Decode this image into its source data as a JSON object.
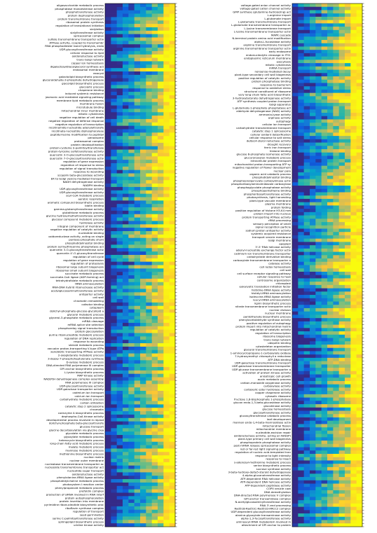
{
  "chart_data": {
    "type": "heatmap",
    "colormap": {
      "name": "viridis",
      "stops": [
        "#352a87",
        "#0f5cdd",
        "#1481d6",
        "#06a4ca",
        "#2eb7a4",
        "#87bf77",
        "#d1bb59",
        "#fec832",
        "#f9fb0e"
      ],
      "range": [
        0,
        1
      ]
    },
    "grid": false,
    "panels": [
      {
        "name": "left",
        "columns": 12,
        "rows": [
          "oligosaccharide metabolic process",
          "phosphatase monoesterase activity",
          "phosphotransferase activity",
          "protein dephosphorylation",
          "protein transmembrane transport",
          "ribosomal protein synthesis",
          "regulation of translational initiation",
          "sialylation",
          "sialyltransferase activity",
          "spliceosomal complex",
          "sulfate transmembrane transporter activ",
          "ATPase activity, coupled to transmembr",
          "RNA phosphodiester bond hydrolysis, endo",
          "UDP-glucosyltransferase activity",
          "cellular response to lipid",
          "oxidoreductase activity",
          "trans-Golgi network",
          "copper ion homeostasis",
          "digalactosyldiacylglycerol synthase act",
          "endosomal membrane",
          "exocyst",
          "galactolipid biosynthetic process",
          "glyceraldehyde-3-phosphate dehydrogenase",
          "glycolipid biosynthetic process",
          "glycolytic process",
          "chaperone binding",
          "induced systemic resistance",
          "jasmonic acid mediated signaling pathway",
          "membrane lipid metabolic process",
          "membrane fusion",
          "microtubule binding",
          "mitochondrial inner membrane",
          "mitotic cytokinesis",
          "negative regulation of cell death",
          "negative regulation of defense response",
          "negative regulation of transcription",
          "nicotinamide-nucleotide adenylyltransfe",
          "nicotinate-nucleotide diphosphorylase",
          "peptidyl-lysine modification to peptidyl",
          "peroxisome",
          "proteasomal complex",
          "protein deubiquitination",
          "protein-cysteine S-palmitoyltransferase",
          "protein-tyrosine sulfotransferase activity",
          "quercetin 3-O-glucosyltransferase activ",
          "quercetin 7-O-glucosyltransferase activ",
          "regulation of gene expression",
          "regulation of response to stress",
          "regulation of signal transduction",
          "response to wounding",
          "scopolin beta-glucosidase activity",
          "ER to Golgi vesicle-mediated transport",
          "NADH dehydrogenase activity",
          "NADPH binding",
          "UDP-glycosyltransferase activity",
          "UDP-glucosyltransferase activity",
          "acyl-CoA metabolic process",
          "aerobic respiration",
          "aromatic compound biosynthetic process",
          "biotin binding",
          "gamma-glutamyltransferase activity",
          "glutathione metabolic process",
          "glycine hydroxymethyltransferase activity",
          "glycosyl compound metabolic process",
          "hydrolase activity",
          "integral component of membrane",
          "negative regulation of catalytic activity",
          "nucleotide binding",
          "oxidoreductase activity, acting on single",
          "pentose-phosphate shunt",
          "phosphatidylinositol binding",
          "protein serine/threonine phosphatase act",
          "quercetin 3-O-glucosyltransferase activ",
          "quercetin 4'-O-glucosyltransferase",
          "regulation of cell cycle",
          "regulation of gene expression",
          "regulation of proteolysis",
          "ribosomal large subunit biogenesis",
          "ribosomal small subunit biogenesis",
          "succinate metabolic process",
          "succinate-CoA ligase (ADP-forming) act",
          "tetrahydrofolate metabolic process",
          "tRNA aminoacylation",
          "RNA-DNA hybrid ribonuclease activity",
          "acetylglucosaminyltransferase activity",
          "antiporter activity",
          "cell wall",
          "chromatin remodeling",
          "cofactor binding",
          "cytoplasm",
          "dolichyl-phosphate-glucose-glycolipid a",
          "glycerol metabolic process",
          "glycerol-3-phosphate metabolic process",
          "mRNA cleavage",
          "mRNA splice site selection",
          "phosphorelay signal transduction",
          "protein glycosylation",
          "purine ribonucleotide metabolic process",
          "regulation of DNA replication",
          "response to wounding",
          "steroid metabolic process",
          "vacuolar proton-transporting V-type ATPa",
          "xenobiotic transporting ATPase activity",
          "2-oxoglutarate metabolic process",
          "3-deoxy-7-phosphoheptulonate synthase",
          "D-xylose metabolic process",
          "DNA-directed RNA polymerase III complex",
          "GPI anchor biosynthetic process",
          "L-lysine biosynthetic process",
          "MAP kinase activity",
          "NAD(P)H dehydrogenase complex assembly",
          "RNA polymerase III complex",
          "UDP-glucosyltransferase activity",
          "UDP-galactose transporter activity",
          "cadmium ion transport",
          "calcium ion transport",
          "carbohydrate metabolic process",
          "carbon utilization",
          "catalytic step 2 spliceosome",
          "chromatin",
          "coenzyme A biosynthetic process",
          "dephospho-CoA kinase activity",
          "developmental process involved in reprod",
          "dolichyl-phosphate beta-glucosyltransfe",
          "glucose transport",
          "glycine decarboxylation via glycine clea",
          "glycolate metabolic process",
          "glyoxylate metabolic process",
          "heterocycle biosynthetic process",
          "long-chain fatty acid metabolic process",
          "malate metabolic process",
          "mannose metabolic process",
          "methionine biosynthetic process",
          "nuclear matrix",
          "nuclear outer membrane",
          "nucleobase transmembrane transporter ac",
          "nucleoside transmembrane transporter act",
          "nucleotide-sugar transport",
          "oxidoreductase activity",
          "phenylalanine-tRNA ligase activity",
          "phosphatidylcholine metabolic process",
          "photosystem I reaction center",
          "phenylpropanoid metabolic process",
          "prefoldin complex",
          "production of siRNA involved in RNA interf",
          "protein autophosphorylation",
          "protein insertion into membrane",
          "pyrimidine ribonucleotide biosynthetic proc",
          "riboflavin synthase complex",
          "regulation of transport",
          "seed germination",
          "serine C-palmitoyltransferase activity",
          "sphingolipid biosynthetic process",
          "uridine kinase activity"
        ]
      },
      {
        "name": "right",
        "columns": 12,
        "rows": [
          "voltage-gated anion channel activity",
          "voltage-gated cation channel activity",
          "GMP synthase (glutamine-hydrolyzing) act",
          "L-arginine import",
          "L-glutamate import",
          "L-glutamate transmembrane transport",
          "L-glutamate transmembrane transporter ac",
          "L-lysine transmembrane transport",
          "L-lysine transmembrane transporter activ",
          "MAPK cascade",
          "N-terminal protein amino acid modification",
          "alpha-L-fucosidase activity",
          "arginine transmembrane transport",
          "arginine transmembrane transporter activ",
          "early endosome",
          "endonucleolytic cleavage in ITS1",
          "endoplasmic reticulum membrane",
          "exocytosis",
          "mitotic cytokinesis",
          "mRNA transport",
          "nonsense-mediated decay",
          "plant-type secondary cell wall biogenesis",
          "positive regulation of catalytic activity",
          "protein phosphatase binding",
          "response to bacterium",
          "response to oxidative stress",
          "structural constituent of ribosome",
          "very long-chain fatty acid biosynthetic",
          "3-hydroxybutyrate dehydrogenase activity",
          "ATP synthesis coupled proton transport",
          "Golgi apparatus",
          "L-glutamate-1-phosphate phosphatase act",
          "aldehyde dehydrogenase (NAD) activity",
          "ammonia-lyase activity",
          "arginase activity",
          "autophagy",
          "cellular ion transport",
          "carbohydrate transmembrane transport",
          "catalytic step 1 spliceosome",
          "cellular oxidant detoxification",
          "cellular response to salt stress",
          "delta14-sterol reductase activity",
          "drought recovery",
          "ferric iron transport",
          "histone binding",
          "glucose 6-phosphate isomerase activity",
          "glucuronoxylan metabolic process",
          "intracellular protein transport",
          "mitochondrial proton-transporting ATP sy",
          "negative regulation of flower development",
          "nuclear pore",
          "organic acid catabolic process",
          "phosphatidylinositol binding",
          "phosphoenolpyruvate carboxykinase activ",
          "phosphoribosylaminoimidazole carboxylase",
          "phosphoglycolate phosphatase activity",
          "phosphopantetheine binding",
          "phosphoribosyltransferase activity",
          "photosynthesis, light harvesting",
          "plant-type vacuole membrane",
          "plasma membrane",
          "protein folding",
          "positive regulation of histone H3-K4 met",
          "protein import into nucleus",
          "protein transporting ATPase activity",
          "rRNA processing",
          "sensory perception of smell",
          "signal recognition particle",
          "sodium:proton antiporter activity",
          "systemic acquired resistance",
          "transport vesicle membrane",
          "Golgi membrane",
          "apoplast",
          "3'-5' RNA helicase activity",
          "adenyl-nucleotide exchange factor activ",
          "cadmium ion transmembrane transporter",
          "carbohydrate derivative binding",
          "carboxylate transmembrane transporter a",
          "catalase activity",
          "cell redox homeostasis",
          "cell wall",
          "cell surface receptor signaling pathway",
          "cellular response to heat",
          "centrosome organization",
          "chloroplast",
          "eukaryotic translation initiation factor",
          "histidine-tRNA ligase activity",
          "histidyl-tRNA aminoacylation",
          "isoleucine-tRNA ligase activity",
          "leucyl-tRNA aminoacylation",
          "lignin biosynthetic process",
          "nitrate transmembrane transporter activ",
          "nuclear division",
          "nuclear membrane",
          "pantothenate biosynthetic process",
          "phenylacetaldehyde synthase activity",
          "positive regulation of autophagy",
          "protein import into mitochondrial matrix",
          "regulation of catalytic activity",
          "regulation of transcription",
          "ribosome biogenesis",
          "trans-Golgi network",
          "ubiquitin binding",
          "cytoskeleton organization",
          "glycerol transmembrane transport",
          "1-aminocyclopropane-1-carboxylate oxidase",
          "7-hydroxymethyl chlorophyll a reductase",
          "ATP-DNA binding",
          "UDP-galactose transmembrane transport",
          "UDP-galactose transmembrane transporter",
          "UDP-glucose transmembrane transporter a",
          "activation of protein kinase activity",
          "anisotropic cell growth",
          "auxin metabolic process",
          "carbon-monoxide oxygenase activity",
          "carboxylase activity",
          "carboxylic ester hydrolase activity",
          "copper chaperone activity",
          "cytosolic ribosome",
          "fructose 1,6-bisphosphate 1-phosphatase",
          "glucan endo-1,3-beta-glucosidase activity",
          "glucokinase activity",
          "glucose homeostasis",
          "glycosyltransferase activity",
          "glucosyltransferase catabolic process",
          "leaf development",
          "mannan endo-1,4-beta-mannosidase activ",
          "mitochondrial fission",
          "mitochondrial membrane",
          "nucleotide-excision repair",
          "oxidoreductase activity, acting on NAD(P)",
          "plant-type primary cell wall biogenesis",
          "phosphoprotein phosphatase activity",
          "post-mRNA release spliceosomal complex",
          "red or far-red light signaling pathway",
          "regulation of nucleic acid-templated tran",
          "response to light intensity",
          "response to insect",
          "s-adenosyl-methionine metabolic process",
          "serine biosynthetic process",
          "sucrose synthase activity",
          "3-beta-hydroxy-delta5-steroid dehydrogenase",
          "4-alpha-glucanotransferase activity",
          "ATP-dependent RNA helicase activity",
          "ATP-dependent DNA helicase activity",
          "ATP-dependent peptidase activity",
          "COPII vesicle coat",
          "DNA demethylation",
          "DNA-directed RNA polymerase V complex",
          "GPI-anchor transamidase complex",
          "N-acetylglucosaminyltransferase activity",
          "RNA 3'-end processing",
          "Rad51B-Rad51C-Rad51D-XRCC2 complex",
          "UDP-dependent glucosyltransferase activity",
          "alanine-glyoxylate transaminase activity",
          "alpha-1,3-fucosyltransferase activity",
          "aminoacyl-tRNA metabolism involved in",
          "attachment of GPI anchor to protein"
        ]
      }
    ]
  }
}
